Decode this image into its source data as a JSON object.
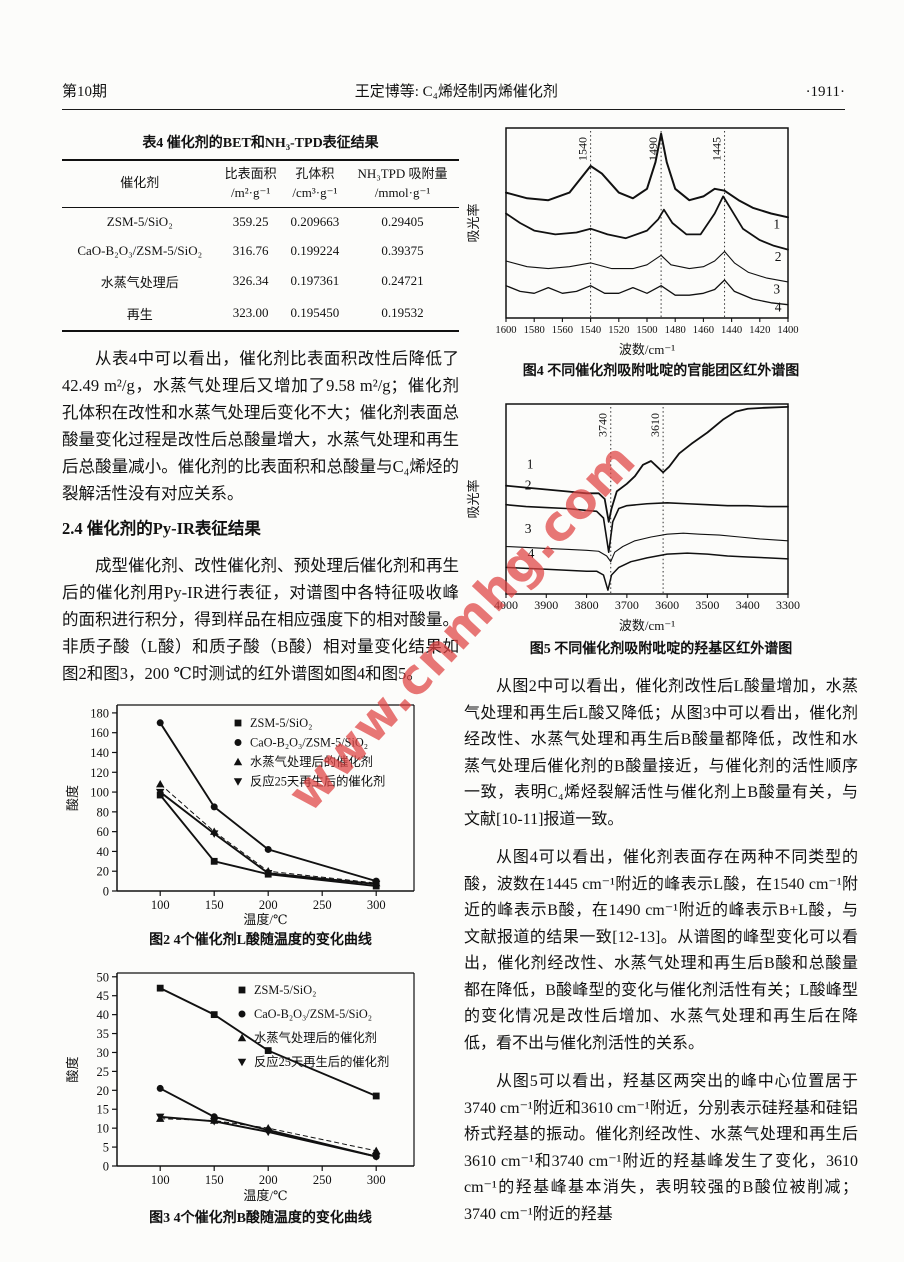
{
  "header": {
    "issue": "第10期",
    "running_title": "王定博等:  C₄烯烃制丙烯催化剂",
    "page_no": "·1911·"
  },
  "table4": {
    "title": "表4  催化剂的BET和NH₃-TPD表征结果",
    "col_headers": [
      [
        "催化剂",
        ""
      ],
      [
        "比表面积",
        "/m²·g⁻¹"
      ],
      [
        "孔体积",
        "/cm³·g⁻¹"
      ],
      [
        "NH₃TPD 吸附量",
        "/mmol·g⁻¹"
      ]
    ],
    "rows": [
      [
        "ZSM-5/SiO₂",
        "359.25",
        "0.209663",
        "0.29405"
      ],
      [
        "CaO-B₂O₃/ZSM-5/SiO₂",
        "316.76",
        "0.199224",
        "0.39375"
      ],
      [
        "水蒸气处理后",
        "326.34",
        "0.197361",
        "0.24721"
      ],
      [
        "再生",
        "323.00",
        "0.195450",
        "0.19532"
      ]
    ]
  },
  "left": {
    "para1": "从表4中可以看出，催化剂比表面积改性后降低了42.49 m²/g，水蒸气处理后又增加了9.58 m²/g；催化剂孔体积在改性和水蒸气处理后变化不大；催化剂表面总酸量变化过程是改性后总酸量增大，水蒸气处理和再生后总酸量减小。催化剂的比表面积和总酸量与C₄烯烃的裂解活性没有对应关系。",
    "heading24": "2.4  催化剂的Py-IR表征结果",
    "para2": "成型催化剂、改性催化剂、预处理后催化剂和再生后的催化剂用Py-IR进行表征，对谱图中各特征吸收峰的面积进行积分，得到样品在相应强度下的相对酸量。非质子酸（L酸）和质子酸（B酸）相对量变化结果如图2和图3，200 ℃时测试的红外谱图如图4和图5。"
  },
  "right": {
    "para3": "从图2中可以看出，催化剂改性后L酸量增加，水蒸气处理和再生后L酸又降低；从图3中可以看出，催化剂经改性、水蒸气处理和再生后B酸量都降低，改性和水蒸气处理后催化剂的B酸量接近，与催化剂的活性顺序一致，表明C₄烯烃裂解活性与催化剂上B酸量有关，与文献[10-11]报道一致。",
    "para4": "从图4可以看出，催化剂表面存在两种不同类型的酸，波数在1445 cm⁻¹附近的峰表示L酸，在1540 cm⁻¹附近的峰表示B酸，在1490 cm⁻¹附近的峰表示B+L酸，与文献报道的结果一致[12-13]。从谱图的峰型变化可以看出，催化剂经改性、水蒸气处理和再生后B酸和总酸量都在降低，B酸峰型的变化与催化剂活性有关；L酸峰型的变化情况是改性后增加、水蒸气处理和再生后在降低，看不出与催化剂活性的关系。",
    "para5": "从图5可以看出，羟基区两突出的峰中心位置居于3740 cm⁻¹附近和3610 cm⁻¹附近，分别表示硅羟基和硅铝桥式羟基的振动。催化剂经改性、水蒸气处理和再生后3610 cm⁻¹和3740 cm⁻¹附近的羟基峰发生了变化，3610 cm⁻¹的羟基峰基本消失，表明较强的B酸位被削减；3740 cm⁻¹附近的羟基"
  },
  "watermark": {
    "text": "www.cnmhg.com",
    "color": "#e04343"
  },
  "chart_data": [
    {
      "id": "fig2",
      "type": "line",
      "title": "图2  4个催化剂L酸随温度的变化曲线",
      "xlabel": "温度/℃",
      "ylabel": "酸度",
      "xlim": [
        60,
        335
      ],
      "ylim": [
        0,
        188
      ],
      "xticks": [
        100,
        150,
        200,
        250,
        300
      ],
      "yticks": [
        0,
        20,
        40,
        60,
        80,
        100,
        120,
        140,
        160,
        180
      ],
      "x": [
        100,
        150,
        200,
        300
      ],
      "grid": false,
      "legend_position": "top-right",
      "series": [
        {
          "name": "ZSM-5/SiO₂",
          "marker": "square",
          "values": [
            97,
            30,
            17,
            5
          ]
        },
        {
          "name": "CaO-B₂O₃/ZSM-5/SiO₂",
          "marker": "circle",
          "values": [
            170,
            85,
            42,
            10
          ]
        },
        {
          "name": "水蒸气处理后的催化剂",
          "marker": "triangle-up",
          "values": [
            108,
            60,
            20,
            8
          ],
          "dashed": true
        },
        {
          "name": "反应25天再生后的催化剂",
          "marker": "triangle-down",
          "values": [
            100,
            58,
            18,
            7
          ]
        }
      ]
    },
    {
      "id": "fig3",
      "type": "line",
      "title": "图3  4个催化剂B酸随温度的变化曲线",
      "xlabel": "温度/℃",
      "ylabel": "酸度",
      "xlim": [
        60,
        335
      ],
      "ylim": [
        0,
        51
      ],
      "xticks": [
        100,
        150,
        200,
        250,
        300
      ],
      "yticks": [
        0,
        5,
        10,
        15,
        20,
        25,
        30,
        35,
        40,
        45,
        50
      ],
      "x": [
        100,
        150,
        200,
        300
      ],
      "grid": false,
      "legend_position": "top-right",
      "series": [
        {
          "name": "ZSM-5/SiO₂",
          "marker": "square",
          "values": [
            47,
            40,
            30.5,
            18.5
          ]
        },
        {
          "name": "CaO-B₂O₃/ZSM-5/SiO₂",
          "marker": "circle",
          "values": [
            20.5,
            13,
            9.5,
            2.5
          ]
        },
        {
          "name": "水蒸气处理后的催化剂",
          "marker": "triangle-up",
          "values": [
            12.5,
            12,
            10,
            4
          ],
          "dashed": true
        },
        {
          "name": "反应25天再生后的催化剂",
          "marker": "triangle-down",
          "values": [
            13,
            11.8,
            9,
            2.5
          ]
        }
      ]
    },
    {
      "id": "fig4",
      "type": "spectra",
      "title": "图4  不同催化剂吸附吡啶的官能团区红外谱图",
      "xlabel": "波数/cm⁻¹",
      "ylabel": "吸光率",
      "xlim": [
        1600,
        1400
      ],
      "xticks": [
        1600,
        1580,
        1560,
        1540,
        1520,
        1500,
        1480,
        1460,
        1440,
        1420,
        1400
      ],
      "peaks": [
        {
          "x": 1540,
          "label": "1540"
        },
        {
          "x": 1490,
          "label": "1490"
        },
        {
          "x": 1445,
          "label": "1445"
        }
      ],
      "curves": [
        {
          "label": "1",
          "w": 2,
          "label_at": [
            1408,
            0.47
          ],
          "points": [
            [
              1600,
              0.66
            ],
            [
              1585,
              0.63
            ],
            [
              1570,
              0.62
            ],
            [
              1555,
              0.66
            ],
            [
              1540,
              0.8
            ],
            [
              1532,
              0.76
            ],
            [
              1520,
              0.66
            ],
            [
              1510,
              0.63
            ],
            [
              1500,
              0.68
            ],
            [
              1494,
              0.82
            ],
            [
              1490,
              0.97
            ],
            [
              1486,
              0.82
            ],
            [
              1480,
              0.68
            ],
            [
              1470,
              0.62
            ],
            [
              1460,
              0.64
            ],
            [
              1452,
              0.68
            ],
            [
              1445,
              0.67
            ],
            [
              1435,
              0.62
            ],
            [
              1425,
              0.58
            ],
            [
              1412,
              0.55
            ],
            [
              1400,
              0.53
            ]
          ]
        },
        {
          "label": "2",
          "w": 1.8,
          "label_at": [
            1407,
            0.3
          ],
          "points": [
            [
              1600,
              0.55
            ],
            [
              1590,
              0.5
            ],
            [
              1580,
              0.46
            ],
            [
              1565,
              0.44
            ],
            [
              1550,
              0.45
            ],
            [
              1540,
              0.47
            ],
            [
              1528,
              0.44
            ],
            [
              1515,
              0.42
            ],
            [
              1500,
              0.46
            ],
            [
              1492,
              0.52
            ],
            [
              1488,
              0.57
            ],
            [
              1482,
              0.5
            ],
            [
              1472,
              0.44
            ],
            [
              1462,
              0.44
            ],
            [
              1452,
              0.55
            ],
            [
              1446,
              0.64
            ],
            [
              1441,
              0.58
            ],
            [
              1432,
              0.47
            ],
            [
              1420,
              0.41
            ],
            [
              1410,
              0.38
            ],
            [
              1400,
              0.36
            ]
          ]
        },
        {
          "label": "3",
          "w": 1.1,
          "label_at": [
            1408,
            0.13
          ],
          "points": [
            [
              1600,
              0.3
            ],
            [
              1585,
              0.27
            ],
            [
              1570,
              0.26
            ],
            [
              1555,
              0.27
            ],
            [
              1540,
              0.29
            ],
            [
              1525,
              0.26
            ],
            [
              1510,
              0.26
            ],
            [
              1500,
              0.28
            ],
            [
              1490,
              0.33
            ],
            [
              1483,
              0.28
            ],
            [
              1470,
              0.26
            ],
            [
              1460,
              0.27
            ],
            [
              1452,
              0.3
            ],
            [
              1445,
              0.35
            ],
            [
              1438,
              0.29
            ],
            [
              1428,
              0.24
            ],
            [
              1415,
              0.21
            ],
            [
              1400,
              0.19
            ]
          ]
        },
        {
          "label": "4",
          "w": 1.3,
          "label_at": [
            1407,
            0.035
          ],
          "points": [
            [
              1600,
              0.17
            ],
            [
              1590,
              0.14
            ],
            [
              1580,
              0.13
            ],
            [
              1570,
              0.16
            ],
            [
              1560,
              0.13
            ],
            [
              1550,
              0.14
            ],
            [
              1540,
              0.17
            ],
            [
              1530,
              0.13
            ],
            [
              1520,
              0.13
            ],
            [
              1510,
              0.16
            ],
            [
              1500,
              0.13
            ],
            [
              1490,
              0.17
            ],
            [
              1480,
              0.12
            ],
            [
              1470,
              0.12
            ],
            [
              1460,
              0.13
            ],
            [
              1452,
              0.15
            ],
            [
              1445,
              0.2
            ],
            [
              1438,
              0.14
            ],
            [
              1425,
              0.1
            ],
            [
              1412,
              0.08
            ],
            [
              1400,
              0.07
            ]
          ]
        }
      ]
    },
    {
      "id": "fig5",
      "type": "spectra",
      "title": "图5  不同催化剂吸附吡啶的羟基区红外谱图",
      "xlabel": "波数/cm⁻¹",
      "ylabel": "吸光率",
      "xlim": [
        4000,
        3300
      ],
      "xticks": [
        4000,
        3900,
        3800,
        3700,
        3600,
        3500,
        3400,
        3300
      ],
      "peaks": [
        {
          "x": 3740,
          "label": "3740"
        },
        {
          "x": 3610,
          "label": "3610"
        }
      ],
      "curves": [
        {
          "label": "1",
          "w": 1.8,
          "label_at": [
            3940,
            0.66
          ],
          "points": [
            [
              4000,
              0.57
            ],
            [
              3950,
              0.56
            ],
            [
              3900,
              0.55
            ],
            [
              3850,
              0.54
            ],
            [
              3800,
              0.53
            ],
            [
              3770,
              0.53
            ],
            [
              3755,
              0.5
            ],
            [
              3745,
              0.38
            ],
            [
              3738,
              0.45
            ],
            [
              3725,
              0.54
            ],
            [
              3700,
              0.58
            ],
            [
              3680,
              0.62
            ],
            [
              3660,
              0.68
            ],
            [
              3640,
              0.7
            ],
            [
              3625,
              0.67
            ],
            [
              3610,
              0.64
            ],
            [
              3595,
              0.67
            ],
            [
              3570,
              0.74
            ],
            [
              3540,
              0.79
            ],
            [
              3500,
              0.85
            ],
            [
              3460,
              0.92
            ],
            [
              3430,
              0.96
            ],
            [
              3400,
              0.975
            ],
            [
              3360,
              0.98
            ],
            [
              3300,
              0.985
            ]
          ]
        },
        {
          "label": "2",
          "w": 1.6,
          "label_at": [
            3945,
            0.55
          ],
          "points": [
            [
              4000,
              0.47
            ],
            [
              3950,
              0.46
            ],
            [
              3900,
              0.455
            ],
            [
              3850,
              0.45
            ],
            [
              3800,
              0.44
            ],
            [
              3775,
              0.435
            ],
            [
              3758,
              0.4
            ],
            [
              3745,
              0.22
            ],
            [
              3735,
              0.38
            ],
            [
              3720,
              0.45
            ],
            [
              3700,
              0.465
            ],
            [
              3650,
              0.475
            ],
            [
              3600,
              0.48
            ],
            [
              3550,
              0.475
            ],
            [
              3500,
              0.47
            ],
            [
              3450,
              0.465
            ],
            [
              3400,
              0.465
            ],
            [
              3350,
              0.46
            ],
            [
              3300,
              0.46
            ]
          ]
        },
        {
          "label": "3",
          "w": 1.1,
          "label_at": [
            3945,
            0.32
          ],
          "points": [
            [
              4000,
              0.25
            ],
            [
              3950,
              0.245
            ],
            [
              3900,
              0.24
            ],
            [
              3850,
              0.235
            ],
            [
              3800,
              0.23
            ],
            [
              3770,
              0.225
            ],
            [
              3750,
              0.2
            ],
            [
              3740,
              0.17
            ],
            [
              3730,
              0.22
            ],
            [
              3710,
              0.25
            ],
            [
              3680,
              0.28
            ],
            [
              3640,
              0.3
            ],
            [
              3600,
              0.315
            ],
            [
              3560,
              0.32
            ],
            [
              3520,
              0.315
            ],
            [
              3470,
              0.31
            ],
            [
              3420,
              0.3
            ],
            [
              3370,
              0.29
            ],
            [
              3300,
              0.28
            ]
          ]
        },
        {
          "label": "4",
          "w": 1.5,
          "label_at": [
            3938,
            0.19
          ],
          "points": [
            [
              4000,
              0.14
            ],
            [
              3950,
              0.135
            ],
            [
              3900,
              0.13
            ],
            [
              3850,
              0.125
            ],
            [
              3800,
              0.12
            ],
            [
              3775,
              0.12
            ],
            [
              3758,
              0.1
            ],
            [
              3747,
              0.02
            ],
            [
              3738,
              0.1
            ],
            [
              3720,
              0.14
            ],
            [
              3690,
              0.17
            ],
            [
              3650,
              0.19
            ],
            [
              3600,
              0.21
            ],
            [
              3550,
              0.215
            ],
            [
              3500,
              0.21
            ],
            [
              3450,
              0.2
            ],
            [
              3400,
              0.195
            ],
            [
              3350,
              0.19
            ],
            [
              3300,
              0.185
            ]
          ]
        }
      ]
    }
  ]
}
